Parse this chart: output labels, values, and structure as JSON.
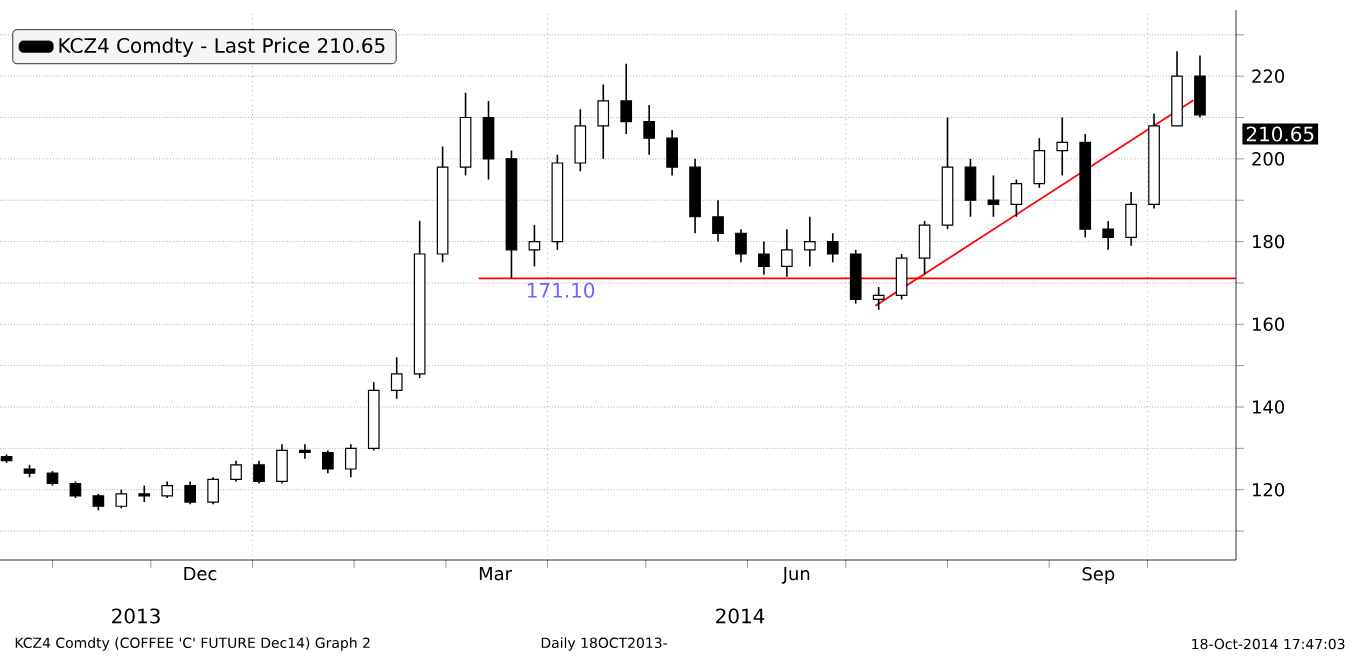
{
  "chart_data": {
    "type": "candlestick",
    "series": [
      {
        "name": "KCZ4 Comdty - Last Price 210.65",
        "color": "#000000",
        "x": [
          "2013-10-18",
          "2013-10-25",
          "2013-11-01",
          "2013-11-08",
          "2013-11-15",
          "2013-11-22",
          "2013-11-29",
          "2013-12-06",
          "2013-12-13",
          "2013-12-20",
          "2013-12-27",
          "2014-01-03",
          "2014-01-10",
          "2014-01-17",
          "2014-01-24",
          "2014-01-31",
          "2014-02-07",
          "2014-02-14",
          "2014-02-21",
          "2014-02-28",
          "2014-03-07",
          "2014-03-14",
          "2014-03-21",
          "2014-03-28",
          "2014-04-04",
          "2014-04-11",
          "2014-04-18",
          "2014-04-25",
          "2014-05-02",
          "2014-05-09",
          "2014-05-16",
          "2014-05-23",
          "2014-05-30",
          "2014-06-06",
          "2014-06-13",
          "2014-06-20",
          "2014-06-27",
          "2014-07-04",
          "2014-07-11",
          "2014-07-18",
          "2014-07-25",
          "2014-08-01",
          "2014-08-08",
          "2014-08-15",
          "2014-08-22",
          "2014-08-29",
          "2014-09-05",
          "2014-09-12",
          "2014-09-19",
          "2014-09-26",
          "2014-10-03",
          "2014-10-10",
          "2014-10-17"
        ],
        "ohlc": [
          [
            128,
            128.5,
            126.5,
            127
          ],
          [
            125,
            126,
            123,
            124
          ],
          [
            124,
            124.5,
            121,
            121.5
          ],
          [
            121.5,
            122,
            118,
            118.5
          ],
          [
            118.5,
            119,
            115,
            116
          ],
          [
            116,
            120,
            115.5,
            119
          ],
          [
            119,
            121,
            117,
            118.5
          ],
          [
            118.5,
            122,
            118,
            121
          ],
          [
            121,
            122,
            116.5,
            117
          ],
          [
            117,
            123,
            116.5,
            122.5
          ],
          [
            122.5,
            127,
            122,
            126
          ],
          [
            126,
            127,
            121.5,
            122
          ],
          [
            122,
            131,
            121.5,
            129.5
          ],
          [
            129.5,
            131,
            127.5,
            129
          ],
          [
            129,
            129.5,
            124,
            125
          ],
          [
            125,
            131,
            123,
            130
          ],
          [
            130,
            146,
            129.5,
            144
          ],
          [
            144,
            152,
            142,
            148
          ],
          [
            148,
            185,
            147,
            177
          ],
          [
            177,
            203,
            175,
            198
          ],
          [
            198,
            216,
            196,
            210
          ],
          [
            210,
            214,
            195,
            200
          ],
          [
            200,
            202,
            171.1,
            178
          ],
          [
            178,
            184,
            174,
            180
          ],
          [
            180,
            201,
            178,
            199
          ],
          [
            199,
            212,
            197,
            208
          ],
          [
            208,
            218,
            200,
            214
          ],
          [
            214,
            223,
            206,
            209
          ],
          [
            209,
            213,
            201,
            205
          ],
          [
            205,
            207,
            196,
            198
          ],
          [
            198,
            200,
            182,
            186
          ],
          [
            186,
            190,
            180,
            182
          ],
          [
            182,
            183,
            175,
            177
          ],
          [
            177,
            180,
            172,
            174
          ],
          [
            174,
            183,
            171.5,
            178
          ],
          [
            178,
            186,
            174,
            180
          ],
          [
            180,
            182,
            175,
            177
          ],
          [
            177,
            178,
            165,
            166
          ],
          [
            166,
            169,
            163.5,
            167
          ],
          [
            167,
            177,
            166,
            176
          ],
          [
            176,
            185,
            172,
            184
          ],
          [
            184,
            210,
            183,
            198
          ],
          [
            198,
            200,
            186,
            190
          ],
          [
            190,
            196,
            186,
            189
          ],
          [
            189,
            195,
            186,
            194
          ],
          [
            194,
            205,
            193,
            202
          ],
          [
            202,
            210,
            196,
            204
          ],
          [
            204,
            206,
            181,
            183
          ],
          [
            183,
            185,
            178,
            181
          ],
          [
            181,
            192,
            179,
            189
          ],
          [
            189,
            211,
            188,
            208
          ],
          [
            208,
            226,
            208,
            220
          ],
          [
            220,
            225,
            210,
            210.65
          ]
        ]
      },
      {
        "type": "line",
        "color": "#ff0000",
        "x": [
          "2014-03-11",
          "2014-10-28"
        ],
        "values": [
          171.1,
          171.1
        ]
      },
      {
        "type": "line",
        "color": "#ff0000",
        "x": [
          "2014-07-10",
          "2014-10-15"
        ],
        "values": [
          164.5,
          214.2
        ]
      }
    ],
    "xlim": [
      "2013-10-16",
      "2014-10-28"
    ],
    "xticks": [
      {
        "value": "2013-11-01",
        "label": null
      },
      {
        "value": "2013-12-01",
        "label": null
      },
      {
        "value": "2014-01-01",
        "label": null
      },
      {
        "value": "2014-02-01",
        "label": null
      },
      {
        "value": "2014-03-01",
        "label": null
      },
      {
        "value": "2014-04-01",
        "label": null
      },
      {
        "value": "2014-05-01",
        "label": null
      },
      {
        "value": "2014-06-01",
        "label": null
      },
      {
        "value": "2014-07-01",
        "label": null
      },
      {
        "value": "2014-08-01",
        "label": null
      },
      {
        "value": "2014-09-01",
        "label": null
      },
      {
        "value": "2014-10-01",
        "label": null
      },
      {
        "value": "2013-12-16",
        "label": "Dec"
      },
      {
        "value": "2014-03-16",
        "label": "Mar"
      },
      {
        "value": "2014-06-16",
        "label": "Jun"
      },
      {
        "value": "2014-09-16",
        "label": "Sep"
      }
    ],
    "ylim": [
      103,
      236
    ],
    "yticks": [
      {
        "value": 110,
        "label": null
      },
      120,
      {
        "value": 130,
        "label": null
      },
      140,
      {
        "value": 150,
        "label": null
      },
      160,
      {
        "value": 170,
        "label": null
      },
      180,
      {
        "value": 190,
        "label": null
      },
      200,
      {
        "value": 210,
        "label": null
      },
      220,
      {
        "value": 230,
        "label": null
      }
    ],
    "grid": "y",
    "ref_lines": [
      {
        "axis": "x",
        "value": "2014-01-01",
        "color": "#808080",
        "line_style": "dotted"
      },
      {
        "axis": "x",
        "value": "2014-04-01",
        "color": "#808080",
        "line_style": "dotted"
      },
      {
        "axis": "x",
        "value": "2014-07-01",
        "color": "#808080",
        "line_style": "dotted"
      },
      {
        "axis": "x",
        "value": "2014-10-01",
        "color": "#808080",
        "line_style": "dotted"
      }
    ],
    "legend": "top left",
    "annotations": [
      "2013",
      "2014",
      "KCZ4 Comdty (COFFEE 'C' FUTURE Dec14) Graph 2",
      "Daily 18OCT2013-",
      "18-Oct-2014 17:47:03",
      {
        "text": "171.10",
        "x": "2014-04-05",
        "y": 171.1
      },
      "210.65"
    ]
  }
}
